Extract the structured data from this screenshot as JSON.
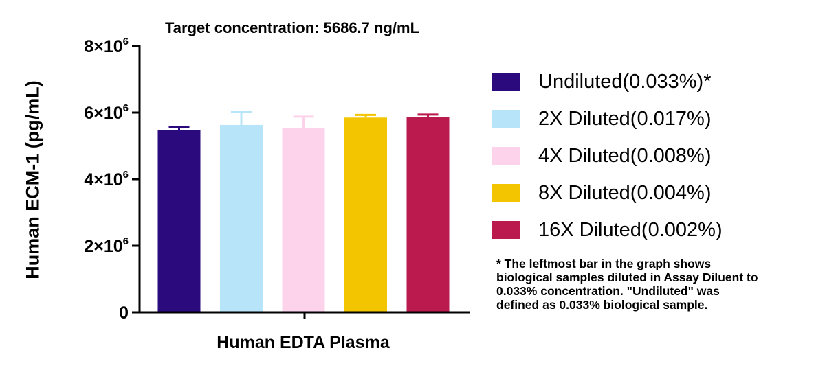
{
  "chart_data": {
    "type": "bar",
    "title": "Target concentration: 5686.7 ng/mL",
    "xlabel": "Human EDTA Plasma",
    "ylabel": "Human ECM-1 (pg/mL)",
    "ylim": [
      0,
      8000000
    ],
    "yticks": [
      {
        "value": 0,
        "base": "0",
        "exp": ""
      },
      {
        "value": 2000000,
        "base": "2×10",
        "exp": "6"
      },
      {
        "value": 4000000,
        "base": "4×10",
        "exp": "6"
      },
      {
        "value": 6000000,
        "base": "6×10",
        "exp": "6"
      },
      {
        "value": 8000000,
        "base": "8×10",
        "exp": "6"
      }
    ],
    "grid": false,
    "legend_position": "right",
    "series": [
      {
        "name": "Undiluted(0.033%)*",
        "value": 5480000,
        "error": 90000,
        "color": "#2a0a7c"
      },
      {
        "name": "2X Diluted(0.017%)",
        "value": 5630000,
        "error": 400000,
        "color": "#b8e4fa"
      },
      {
        "name": "4X Diluted(0.008%)",
        "value": 5540000,
        "error": 340000,
        "color": "#fdd3ec"
      },
      {
        "name": "8X Diluted(0.004%)",
        "value": 5850000,
        "error": 80000,
        "color": "#f2c500"
      },
      {
        "name": "16X Diluted(0.002%)",
        "value": 5860000,
        "error": 80000,
        "color": "#ba1a4e"
      }
    ]
  },
  "footnote": {
    "lines": [
      "* The leftmost bar in the graph shows",
      "biological samples diluted in Assay Diluent to",
      "0.033% concentration. \"Undiluted\" was",
      "defined as 0.033% biological sample."
    ]
  }
}
